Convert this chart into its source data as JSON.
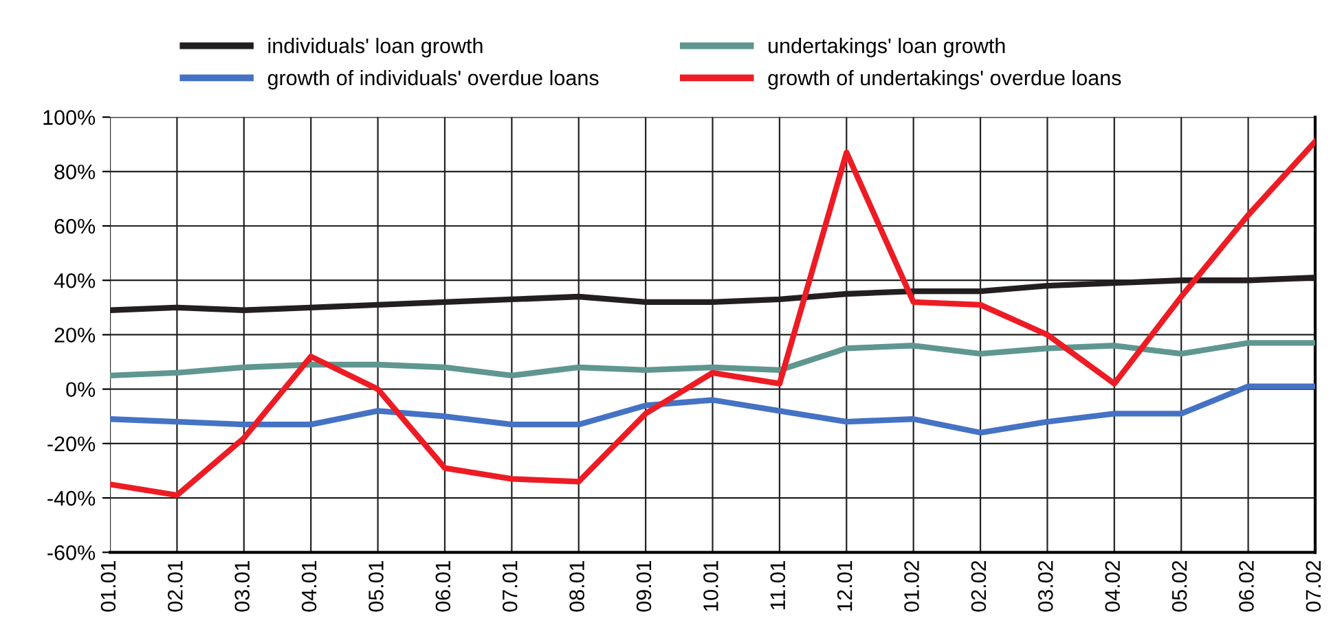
{
  "chart_data": {
    "type": "line",
    "categories": [
      "01.01",
      "02.01",
      "03.01",
      "04.01",
      "05.01",
      "06.01",
      "07.01",
      "08.01",
      "09.01",
      "10.01",
      "11.01",
      "12.01",
      "01.02",
      "02.02",
      "03.02",
      "04.02",
      "05.02",
      "06.02",
      "07.02"
    ],
    "series": [
      {
        "name": "individuals' loan growth",
        "color": "#231f20",
        "values": [
          29,
          30,
          29,
          30,
          31,
          32,
          33,
          34,
          32,
          32,
          33,
          35,
          36,
          36,
          38,
          39,
          40,
          40,
          41
        ]
      },
      {
        "name": "growth of individuals' overdue loans",
        "color": "#4472c4",
        "values": [
          -11,
          -12,
          -13,
          -13,
          -8,
          -10,
          -13,
          -13,
          -6,
          -4,
          -8,
          -12,
          -11,
          -16,
          -12,
          -9,
          -9,
          1,
          1
        ]
      },
      {
        "name": "undertakings' loan growth",
        "color": "#5f9690",
        "values": [
          5,
          6,
          8,
          9,
          9,
          8,
          5,
          8,
          7,
          8,
          7,
          15,
          16,
          13,
          15,
          16,
          13,
          17,
          17
        ]
      },
      {
        "name": "growth of undertakings' overdue loans",
        "color": "#ed1c24",
        "values": [
          -35,
          -39,
          -18,
          12,
          0,
          -29,
          -33,
          -34,
          -9,
          6,
          2,
          87,
          32,
          31,
          20,
          2,
          34,
          64,
          91
        ]
      }
    ],
    "ylim": [
      -60,
      100
    ],
    "yticks": [
      {
        "value": -60,
        "label": "-60%"
      },
      {
        "value": -40,
        "label": "-40%"
      },
      {
        "value": -20,
        "label": "-20%"
      },
      {
        "value": 0,
        "label": "0%"
      },
      {
        "value": 20,
        "label": "20%"
      },
      {
        "value": 40,
        "label": "40%"
      },
      {
        "value": 60,
        "label": "60%"
      },
      {
        "value": 80,
        "label": "80%"
      },
      {
        "value": 100,
        "label": "100%"
      }
    ],
    "grid": true,
    "legend": "top",
    "marker": "none",
    "line_style": "solid"
  }
}
